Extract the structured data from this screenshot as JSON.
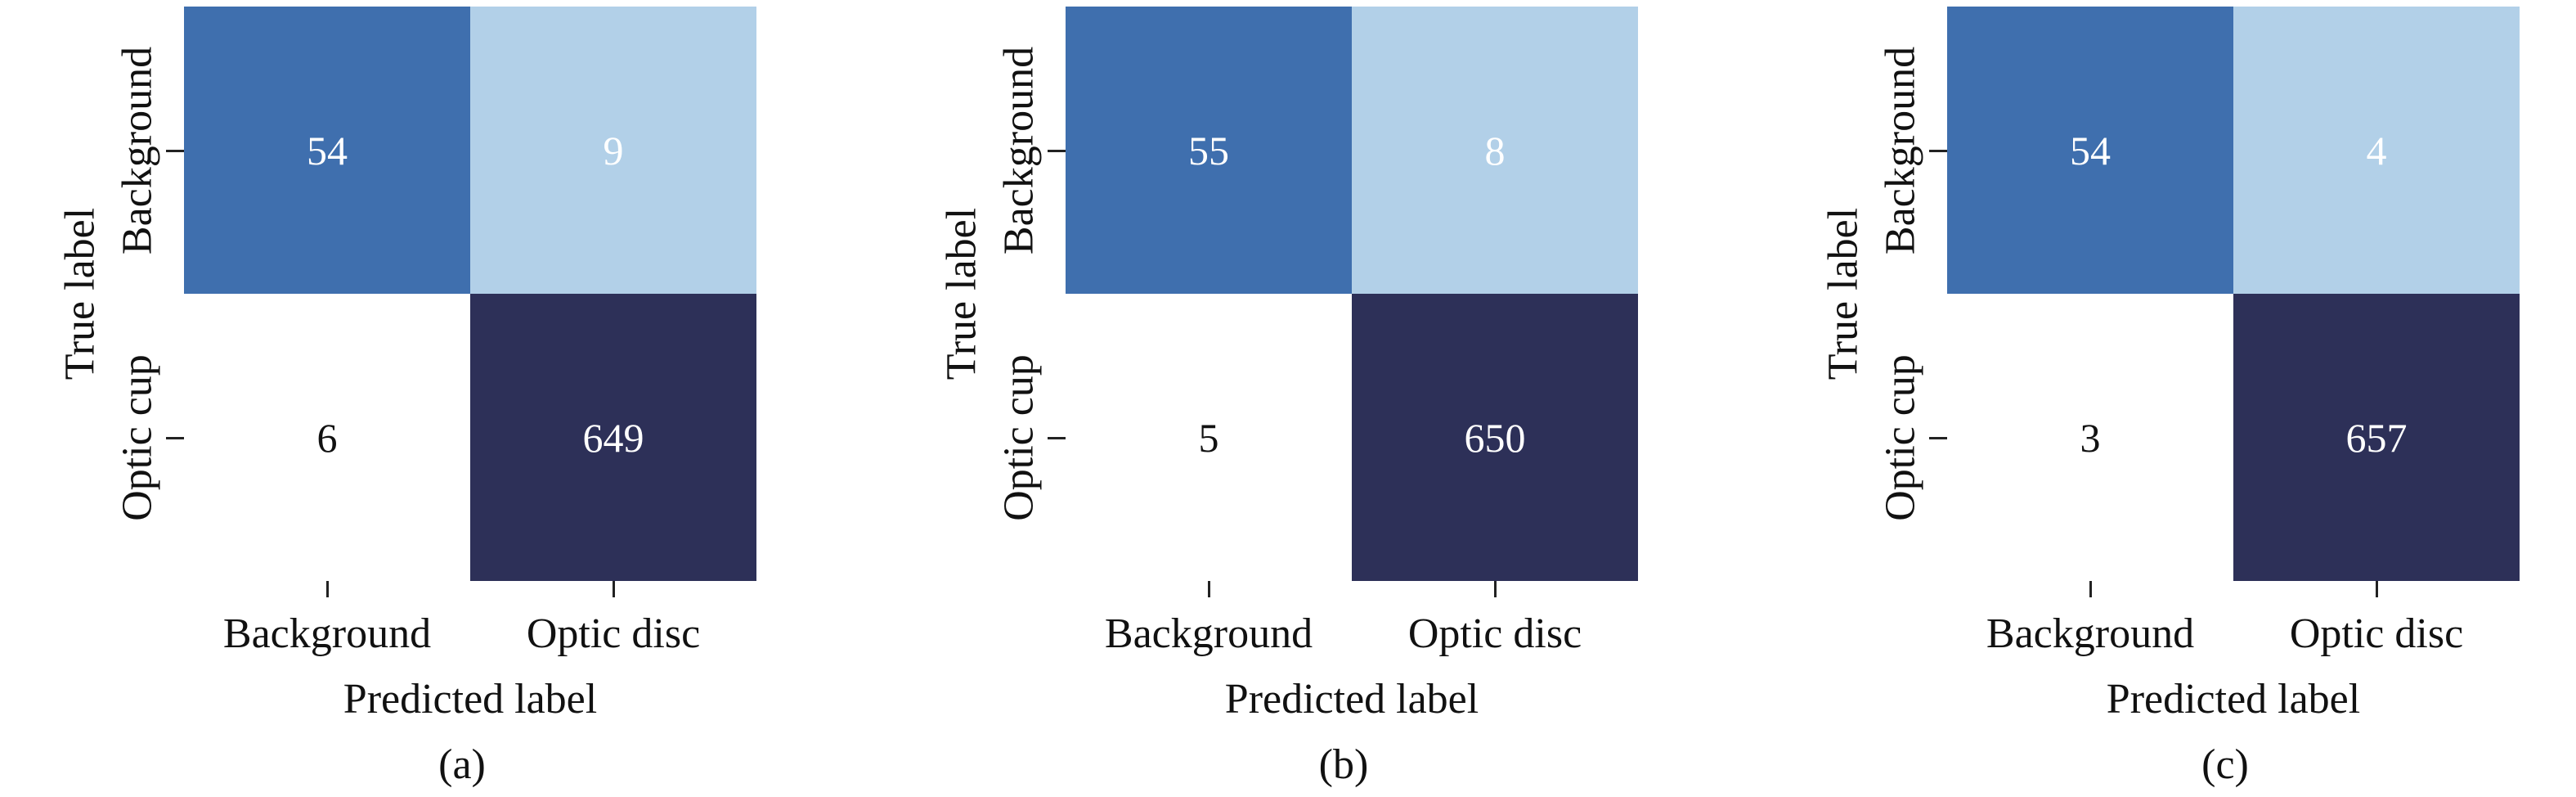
{
  "chart_data": [
    {
      "type": "heatmap",
      "caption": "(a)",
      "xlabel": "Predicted label",
      "ylabel": "True label",
      "x_categories": [
        "Background",
        "Optic disc"
      ],
      "y_categories": [
        "Background",
        "Optic cup"
      ],
      "matrix": [
        [
          54,
          9
        ],
        [
          6,
          649
        ]
      ],
      "cell_colors": [
        [
          "#3f6fae",
          "#b2d0e8"
        ],
        [
          "#ffffff",
          "#2d3058"
        ]
      ]
    },
    {
      "type": "heatmap",
      "caption": "(b)",
      "xlabel": "Predicted label",
      "ylabel": "True label",
      "x_categories": [
        "Background",
        "Optic disc"
      ],
      "y_categories": [
        "Background",
        "Optic cup"
      ],
      "matrix": [
        [
          55,
          8
        ],
        [
          5,
          650
        ]
      ],
      "cell_colors": [
        [
          "#3f6fae",
          "#b2d0e8"
        ],
        [
          "#ffffff",
          "#2d3058"
        ]
      ]
    },
    {
      "type": "heatmap",
      "caption": "(c)",
      "xlabel": "Predicted label",
      "ylabel": "True label",
      "x_categories": [
        "Background",
        "Optic disc"
      ],
      "y_categories": [
        "Background",
        "Optic cup"
      ],
      "matrix": [
        [
          54,
          4
        ],
        [
          3,
          657
        ]
      ],
      "cell_colors": [
        [
          "#3f6fae",
          "#b2d0e8"
        ],
        [
          "#ffffff",
          "#2d3058"
        ]
      ]
    }
  ],
  "colors": {
    "dark_text": "#111111",
    "light_text": "#ffffff"
  }
}
